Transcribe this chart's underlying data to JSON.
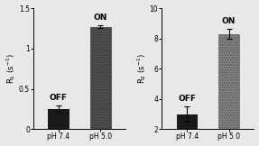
{
  "left": {
    "ylabel": "R$_1$ (s$^{-1}$)",
    "categories": [
      "pH 7.4",
      "pH 5.0"
    ],
    "values": [
      0.25,
      1.27
    ],
    "errors": [
      0.04,
      0.02
    ],
    "labels": [
      "OFF",
      "ON"
    ],
    "bar_colors": [
      "#1a1a1a",
      "#555555"
    ],
    "hatch": [
      null,
      "......"
    ],
    "edgecolors": [
      "none",
      "#333333"
    ],
    "ylim": [
      0,
      1.5
    ],
    "yticks": [
      0.0,
      0.5,
      1.0,
      1.5
    ]
  },
  "right": {
    "ylabel": "R$_2$ (s$^{-1}$)",
    "categories": [
      "pH 7.4",
      "pH 5.0"
    ],
    "values": [
      3.0,
      8.3
    ],
    "errors": [
      0.5,
      0.35
    ],
    "labels": [
      "OFF",
      "ON"
    ],
    "bar_colors": [
      "#1a1a1a",
      "#888888"
    ],
    "hatch": [
      null,
      "......"
    ],
    "edgecolors": [
      "none",
      "#555555"
    ],
    "ylim": [
      2,
      10
    ],
    "yticks": [
      2,
      4,
      6,
      8,
      10
    ]
  },
  "background_color": "#e8e8e8",
  "label_fontsize": 6.0,
  "tick_fontsize": 5.5,
  "bar_annotation_fontsize": 6.5,
  "bar_width": 0.5
}
